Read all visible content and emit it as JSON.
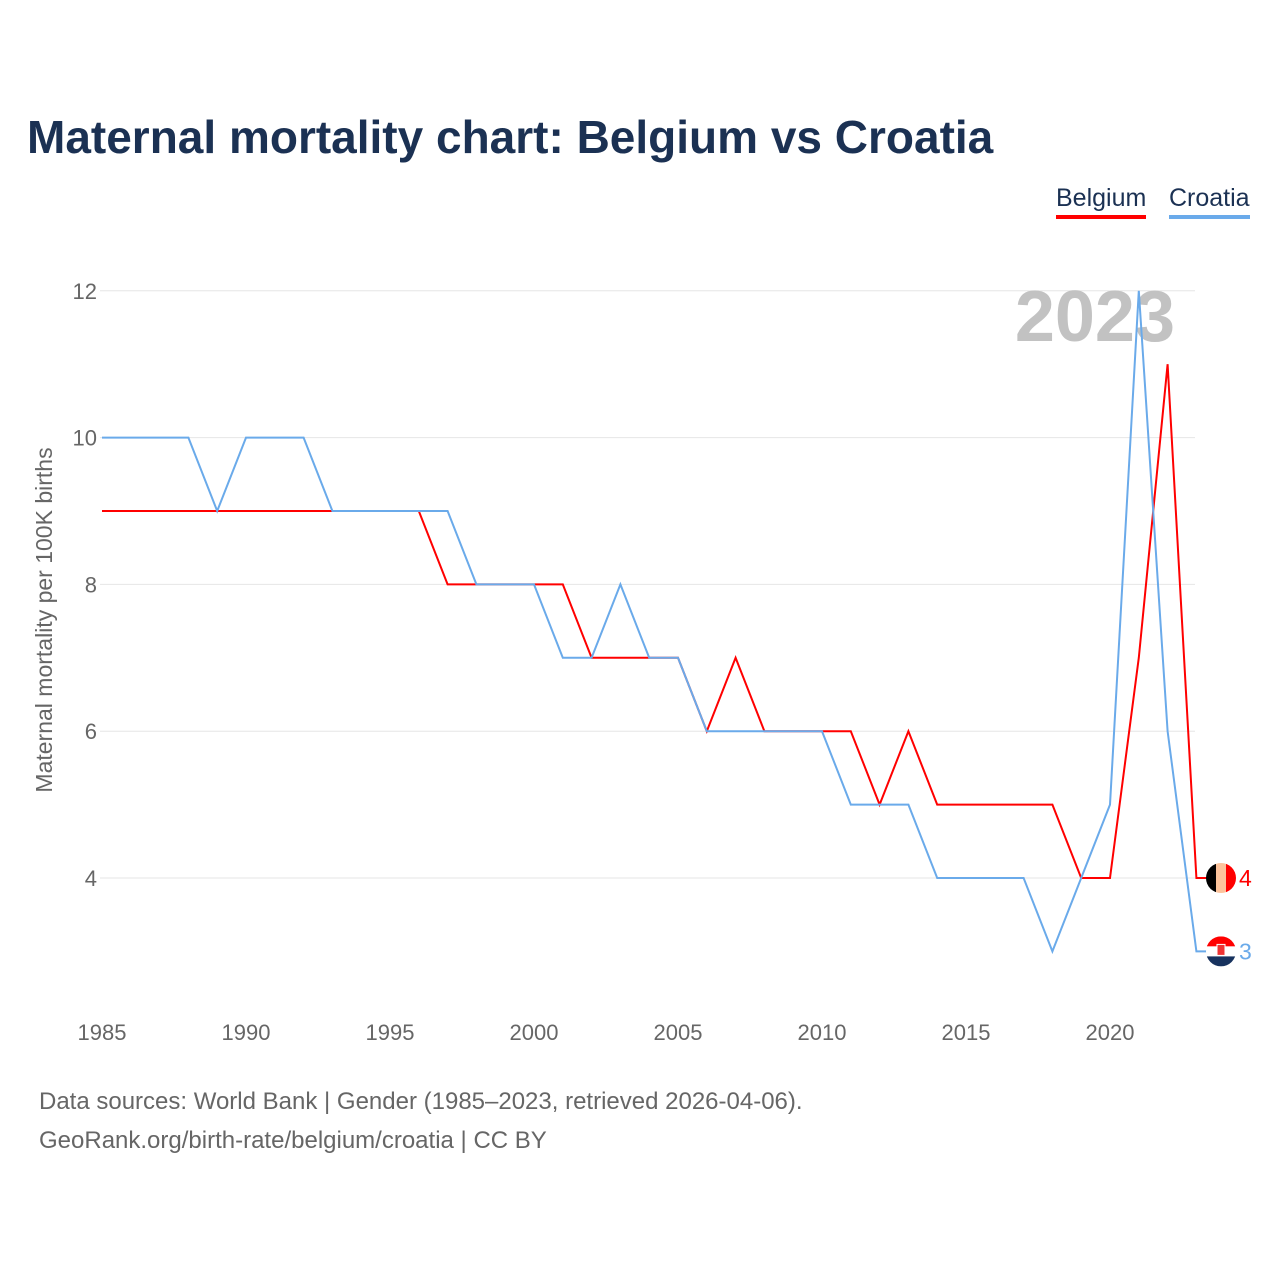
{
  "title": "Maternal mortality chart: Belgium vs Croatia",
  "year_label": "2023",
  "footer": {
    "line1": "Data sources: World Bank | Gender (1985–2023, retrieved 2026-04-06).",
    "line2": "GeoRank.org/birth-rate/belgium/croatia | CC BY"
  },
  "chart_data": {
    "type": "line",
    "title": "Maternal mortality chart: Belgium vs Croatia",
    "xlabel": "",
    "ylabel": "Maternal mortality per 100K births",
    "xlim": [
      1985,
      2023
    ],
    "ylim": [
      2.5,
      12.5
    ],
    "grid": true,
    "legend_placement": "top-right",
    "x_ticks": [
      "1985",
      "1990",
      "1995",
      "2000",
      "2005",
      "2010",
      "2015",
      "2020"
    ],
    "y_ticks": [
      "4",
      "6",
      "8",
      "10",
      "12"
    ],
    "x": [
      1985,
      1986,
      1987,
      1988,
      1989,
      1990,
      1991,
      1992,
      1993,
      1994,
      1995,
      1996,
      1997,
      1998,
      1999,
      2000,
      2001,
      2002,
      2003,
      2004,
      2005,
      2006,
      2007,
      2008,
      2009,
      2010,
      2011,
      2012,
      2013,
      2014,
      2015,
      2016,
      2017,
      2018,
      2019,
      2020,
      2021,
      2022,
      2023
    ],
    "series": [
      {
        "name": "Belgium",
        "color": "#ff0000",
        "end_label": "4",
        "values": [
          9,
          9,
          9,
          9,
          9,
          9,
          9,
          9,
          9,
          9,
          9,
          9,
          8,
          8,
          8,
          8,
          8,
          7,
          7,
          7,
          7,
          6,
          7,
          6,
          6,
          6,
          6,
          5,
          6,
          5,
          5,
          5,
          5,
          5,
          4,
          4,
          7,
          11,
          4
        ]
      },
      {
        "name": "Croatia",
        "color": "#6aaaea",
        "end_label": "3",
        "values": [
          10,
          10,
          10,
          10,
          9,
          10,
          10,
          10,
          9,
          9,
          9,
          9,
          9,
          8,
          8,
          8,
          7,
          7,
          8,
          7,
          7,
          6,
          6,
          6,
          6,
          6,
          5,
          5,
          5,
          4,
          4,
          4,
          4,
          3,
          4,
          5,
          12,
          6,
          3
        ]
      }
    ]
  }
}
